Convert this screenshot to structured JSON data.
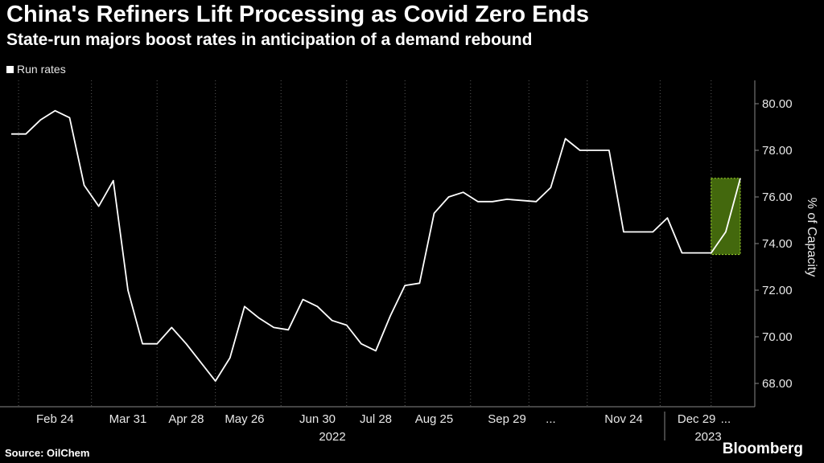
{
  "header": {
    "title": "China's Refiners Lift Processing as Covid Zero Ends",
    "subtitle": "State-run majors boost rates in anticipation of a demand rebound"
  },
  "footer": {
    "source": "Source: OilChem",
    "brand": "Bloomberg"
  },
  "colors": {
    "line": "#ffffff",
    "highlight": "#4f7a0f",
    "highlight_border": "#a6e22e",
    "grid": "#5a5a5a"
  },
  "chart_data": {
    "type": "line",
    "legend": [
      "Run rates"
    ],
    "legend_position": "top-left",
    "ylabel": "% of Capacity",
    "ylim": [
      67,
      81
    ],
    "y_axis_side": "right",
    "yticks": [
      "68.00",
      "70.00",
      "72.00",
      "74.00",
      "76.00",
      "78.00",
      "80.00"
    ],
    "xtick_labels": [
      "Feb 24",
      "Mar 31",
      "Apr 28",
      "May 26",
      "Jun 30",
      "Jul 28",
      "Aug 25",
      "Sep 29",
      "...",
      "Nov 24",
      "Dec 29",
      "..."
    ],
    "year_labels": [
      "2022",
      "2023"
    ],
    "grid": "vertical dotted",
    "series": [
      {
        "name": "Run rates",
        "x": [
          "2022-02-03",
          "2022-02-10",
          "2022-02-17",
          "2022-02-24",
          "2022-03-03",
          "2022-03-10",
          "2022-03-17",
          "2022-03-24",
          "2022-03-31",
          "2022-04-07",
          "2022-04-14",
          "2022-04-21",
          "2022-04-28",
          "2022-05-05",
          "2022-05-12",
          "2022-05-19",
          "2022-05-26",
          "2022-06-02",
          "2022-06-09",
          "2022-06-16",
          "2022-06-23",
          "2022-06-30",
          "2022-07-07",
          "2022-07-14",
          "2022-07-21",
          "2022-07-28",
          "2022-08-04",
          "2022-08-11",
          "2022-08-18",
          "2022-08-25",
          "2022-09-01",
          "2022-09-08",
          "2022-09-15",
          "2022-09-22",
          "2022-09-29",
          "2022-10-13",
          "2022-10-20",
          "2022-10-27",
          "2022-11-03",
          "2022-11-10",
          "2022-11-17",
          "2022-11-24",
          "2022-12-01",
          "2022-12-08",
          "2022-12-15",
          "2022-12-22",
          "2022-12-29",
          "2023-01-05",
          "2023-01-12",
          "2023-01-19"
        ],
        "values": [
          78.7,
          78.7,
          79.3,
          79.7,
          79.4,
          76.5,
          75.6,
          76.7,
          72.0,
          69.7,
          69.7,
          70.4,
          69.7,
          68.9,
          68.1,
          69.1,
          71.3,
          70.8,
          70.4,
          70.3,
          71.6,
          71.3,
          70.7,
          70.5,
          69.7,
          69.4,
          70.9,
          72.2,
          72.3,
          75.3,
          76.0,
          76.2,
          75.8,
          75.8,
          75.9,
          75.8,
          76.4,
          78.5,
          78.0,
          78.0,
          78.0,
          74.5,
          74.5,
          74.5,
          75.1,
          73.6,
          73.6,
          73.6,
          74.5,
          76.8
        ]
      }
    ],
    "annotations": [
      {
        "type": "highlight-box",
        "x_start": "2023-01-05",
        "x_end": "2023-01-19",
        "y_range": [
          73.6,
          76.8
        ]
      }
    ]
  }
}
